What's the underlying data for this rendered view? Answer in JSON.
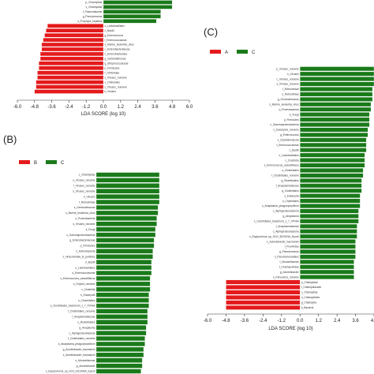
{
  "colors": {
    "red": "#e41a1c",
    "green": "#1a7a1a",
    "axis": "#333333"
  },
  "chart_data": [
    {
      "panel": "",
      "type": "bar",
      "orientation": "horizontal",
      "xlabel": "LDA SCORE (log 10)",
      "xlim": [
        -6.0,
        6.0
      ],
      "xticks": [
        "-6.0",
        "-4.8",
        "-3.6",
        "-2.4",
        "-1.2",
        "0.0",
        "1.2",
        "2.4",
        "3.6",
        "4.8",
        "6.0"
      ],
      "legend": [],
      "bars": [
        {
          "label": "p_Chlamydiae",
          "value": 4.8,
          "group": "green"
        },
        {
          "label": "c_Chlamydiae",
          "value": 4.8,
          "group": "green"
        },
        {
          "label": "f_Pasumalaceae",
          "value": 4.0,
          "group": "green"
        },
        {
          "label": "g_Pseudomonas",
          "value": 4.0,
          "group": "green"
        },
        {
          "label": "s_Porphyra_hepatica",
          "value": 3.7,
          "group": "green"
        },
        {
          "label": "o_Lactobacillales",
          "value": -3.9,
          "group": "red"
        },
        {
          "label": "c_Bacilli",
          "value": -4.0,
          "group": "red"
        },
        {
          "label": "g_Enterococcus",
          "value": -4.1,
          "group": "red"
        },
        {
          "label": "f_Enterococcaceae",
          "value": -4.2,
          "group": "red"
        },
        {
          "label": "s_Murine_leukemia_virus",
          "value": -4.3,
          "group": "red"
        },
        {
          "label": "c_Enterobacteriaceae",
          "value": -4.3,
          "group": "red"
        },
        {
          "label": "o_Enterobacterales",
          "value": -4.4,
          "group": "red"
        },
        {
          "label": "g_Gemmatimonas",
          "value": -4.4,
          "group": "red"
        },
        {
          "label": "g_Streptococcaceae",
          "value": -4.5,
          "group": "red"
        },
        {
          "label": "p_Firmicutes",
          "value": -4.5,
          "group": "red"
        },
        {
          "label": "f_Orbiviridae",
          "value": -4.6,
          "group": "red"
        },
        {
          "label": "s_Viruses_noname",
          "value": -4.6,
          "group": "red"
        },
        {
          "label": "o_Orbivirales",
          "value": -4.7,
          "group": "red"
        },
        {
          "label": "s_Viruses_noname",
          "value": -4.7,
          "group": "red"
        },
        {
          "label": "k_Viruses",
          "value": -4.8,
          "group": "red"
        }
      ]
    },
    {
      "panel": "(B)",
      "type": "bar",
      "orientation": "horizontal",
      "xlabel": "",
      "legend": [
        {
          "name": "B",
          "color": "red"
        },
        {
          "name": "C",
          "color": "green"
        }
      ],
      "bars": [
        {
          "label": "c_Chlamydiae",
          "value": 4.8,
          "group": "green"
        },
        {
          "label": "o_Viruses_noname",
          "value": 4.8,
          "group": "green"
        },
        {
          "label": "f_Viruses_noname",
          "value": 4.8,
          "group": "green"
        },
        {
          "label": "o_Viruses_noname",
          "value": 4.8,
          "group": "green"
        },
        {
          "label": "k_Viruses",
          "value": 4.8,
          "group": "green"
        },
        {
          "label": "f_Retroviridae",
          "value": 4.8,
          "group": "green"
        },
        {
          "label": "s_Gemmatimonas",
          "value": 4.7,
          "group": "green"
        },
        {
          "label": "s_Murine_leukemia_virus",
          "value": 4.7,
          "group": "green"
        },
        {
          "label": "o_Proteobacteria",
          "value": 4.6,
          "group": "green"
        },
        {
          "label": "s_Viruses_noname",
          "value": 4.6,
          "group": "green"
        },
        {
          "label": "k_Fungi",
          "value": 4.5,
          "group": "green"
        },
        {
          "label": "c_Gammaproteobacteria",
          "value": 4.5,
          "group": "green"
        },
        {
          "label": "g_Enterobacteriaceae",
          "value": 4.4,
          "group": "green"
        },
        {
          "label": "p_Firmicutes",
          "value": 4.4,
          "group": "green"
        },
        {
          "label": "s_Actinobacteria",
          "value": 4.3,
          "group": "green"
        },
        {
          "label": "s_Hiracoviridae_B_particles",
          "value": 4.3,
          "group": "green"
        },
        {
          "label": "k_Bacilli",
          "value": 4.2,
          "group": "green"
        },
        {
          "label": "o_Lactobacillales",
          "value": 4.2,
          "group": "green"
        },
        {
          "label": "s_Enterococcaceae",
          "value": 4.2,
          "group": "green"
        },
        {
          "label": "o_Enterococcus_casseliflavus",
          "value": 4.1,
          "group": "green"
        },
        {
          "label": "s_Chytrid_noname",
          "value": 4.1,
          "group": "green"
        },
        {
          "label": "c_Clostridia",
          "value": 4.1,
          "group": "green"
        },
        {
          "label": "s_Eukaryota",
          "value": 4.0,
          "group": "green"
        },
        {
          "label": "o_Clostridiales",
          "value": 4.0,
          "group": "green"
        },
        {
          "label": "s_Clostridiales_bacterium_1_7_47FAA",
          "value": 4.0,
          "group": "green"
        },
        {
          "label": "f_Clostridiales_noname",
          "value": 3.9,
          "group": "green"
        },
        {
          "label": "f_Anaplasmataceae",
          "value": 3.9,
          "group": "green"
        },
        {
          "label": "o_Rickettsiales",
          "value": 3.9,
          "group": "green"
        },
        {
          "label": "g_Anaplasma",
          "value": 3.8,
          "group": "green"
        },
        {
          "label": "c_Alphaproteobacteria",
          "value": 3.8,
          "group": "green"
        },
        {
          "label": "f_Clostridiales_noname",
          "value": 3.7,
          "group": "green"
        },
        {
          "label": "s_Anaplasma_phagocytophilum",
          "value": 3.7,
          "group": "green"
        },
        {
          "label": "g_Acinetobacter_baumannii",
          "value": 3.6,
          "group": "green"
        },
        {
          "label": "s_Acinetobacter_baumannii",
          "value": 3.6,
          "group": "green"
        },
        {
          "label": "o_Moraxellaceae",
          "value": 3.5,
          "group": "green"
        },
        {
          "label": "g_Acinetobacter",
          "value": 3.5,
          "group": "green"
        },
        {
          "label": "s_Equipoxvirus_sp_SCG_B11903A_Epoxli",
          "value": 3.4,
          "group": "green"
        }
      ]
    },
    {
      "panel": "(C)",
      "type": "bar",
      "orientation": "horizontal",
      "xlabel": "LDA SCORE (log 10)",
      "xlim": [
        -6.0,
        4.8
      ],
      "xticks": [
        "-6.0",
        "-4.8",
        "-3.6",
        "-2.4",
        "-1.2",
        "0.0",
        "1.2",
        "2.4",
        "3.6",
        "4.8"
      ],
      "legend": [
        {
          "name": "A",
          "color": "red"
        },
        {
          "name": "C",
          "color": "green"
        }
      ],
      "bars": [
        {
          "label": "p_Viruses_noname",
          "value": 4.8,
          "group": "green"
        },
        {
          "label": "k_Viruses",
          "value": 4.8,
          "group": "green"
        },
        {
          "label": "c_Viruses_noname",
          "value": 4.8,
          "group": "green"
        },
        {
          "label": "s_Viruses_noname",
          "value": 4.8,
          "group": "green"
        },
        {
          "label": "f_Retroviridae",
          "value": 4.7,
          "group": "green"
        },
        {
          "label": "o_Retroviridae",
          "value": 4.7,
          "group": "green"
        },
        {
          "label": "g_Gemmatimonas",
          "value": 4.7,
          "group": "green"
        },
        {
          "label": "s_Murine_leukemia_virus",
          "value": 4.6,
          "group": "green"
        },
        {
          "label": "p_Proteobacteria",
          "value": 4.6,
          "group": "green"
        },
        {
          "label": "k_Fungi",
          "value": 4.5,
          "group": "green"
        },
        {
          "label": "p_Firmicutes",
          "value": 4.5,
          "group": "green"
        },
        {
          "label": "c_Gammaproteobacteria",
          "value": 4.5,
          "group": "green"
        },
        {
          "label": "o_Eukaryota_noname",
          "value": 4.4,
          "group": "green"
        },
        {
          "label": "g_Enterococcus",
          "value": 4.4,
          "group": "green"
        },
        {
          "label": "s_Chytridiomycota",
          "value": 4.3,
          "group": "green"
        },
        {
          "label": "f_Enterococcaceae",
          "value": 4.3,
          "group": "green"
        },
        {
          "label": "c_Bacilli",
          "value": 4.3,
          "group": "green"
        },
        {
          "label": "o_Lactobacillales",
          "value": 4.2,
          "group": "green"
        },
        {
          "label": "c_Clostridia",
          "value": 4.2,
          "group": "green"
        },
        {
          "label": "s_Enterococcus_casseliflavus",
          "value": 4.2,
          "group": "green"
        },
        {
          "label": "o_Clostridiales",
          "value": 4.1,
          "group": "green"
        },
        {
          "label": "f_Clostridiales_noname",
          "value": 4.1,
          "group": "green"
        },
        {
          "label": "g_Rickettsiales",
          "value": 4.0,
          "group": "green"
        },
        {
          "label": "f_Anaplasmataceae",
          "value": 4.0,
          "group": "green"
        },
        {
          "label": "g_Clostridiales",
          "value": 4.0,
          "group": "green"
        },
        {
          "label": "s_Eukaryota",
          "value": 3.9,
          "group": "green"
        },
        {
          "label": "o_Chytridiales",
          "value": 3.9,
          "group": "green"
        },
        {
          "label": "s_Anaplasma_phagocytophilum",
          "value": 3.9,
          "group": "green"
        },
        {
          "label": "c_Alphaproteobacteria",
          "value": 3.8,
          "group": "green"
        },
        {
          "label": "g_Anaplasma",
          "value": 3.8,
          "group": "green"
        },
        {
          "label": "s_Clostridiales_bacterium_1_7_47FAA",
          "value": 3.8,
          "group": "green"
        },
        {
          "label": "f_Anaplasmataceae",
          "value": 3.7,
          "group": "green"
        },
        {
          "label": "c_Alphaproteobacteria",
          "value": 3.7,
          "group": "green"
        },
        {
          "label": "s_Equipoxvirus_sp_SCG_B11903A_Epoxli",
          "value": 3.7,
          "group": "green"
        },
        {
          "label": "s_Acinetobacter_baumannii",
          "value": 3.6,
          "group": "green"
        },
        {
          "label": "f_Poxviridae",
          "value": 3.6,
          "group": "green"
        },
        {
          "label": "g_Pseudomonas",
          "value": 3.6,
          "group": "green"
        },
        {
          "label": "o_Pseudomonadales",
          "value": 3.6,
          "group": "green"
        },
        {
          "label": "f_Moraxellaceae",
          "value": 3.5,
          "group": "green"
        },
        {
          "label": "f_Chamaeviridae",
          "value": 3.5,
          "group": "green"
        },
        {
          "label": "g_Acinetobacter",
          "value": 3.5,
          "group": "green"
        },
        {
          "label": "s_Parvovirus_noname",
          "value": 3.5,
          "group": "green"
        },
        {
          "label": "p_Chlamydiae",
          "value": -4.8,
          "group": "red"
        },
        {
          "label": "f_Chlamydiaceae",
          "value": -4.8,
          "group": "red"
        },
        {
          "label": "c_Chlamydiae",
          "value": -4.8,
          "group": "red"
        },
        {
          "label": "o_Chlamydiales",
          "value": -4.8,
          "group": "red"
        },
        {
          "label": "g_Chlamydia",
          "value": -4.8,
          "group": "red"
        },
        {
          "label": "k_Bacteria",
          "value": -4.8,
          "group": "red"
        }
      ]
    }
  ]
}
